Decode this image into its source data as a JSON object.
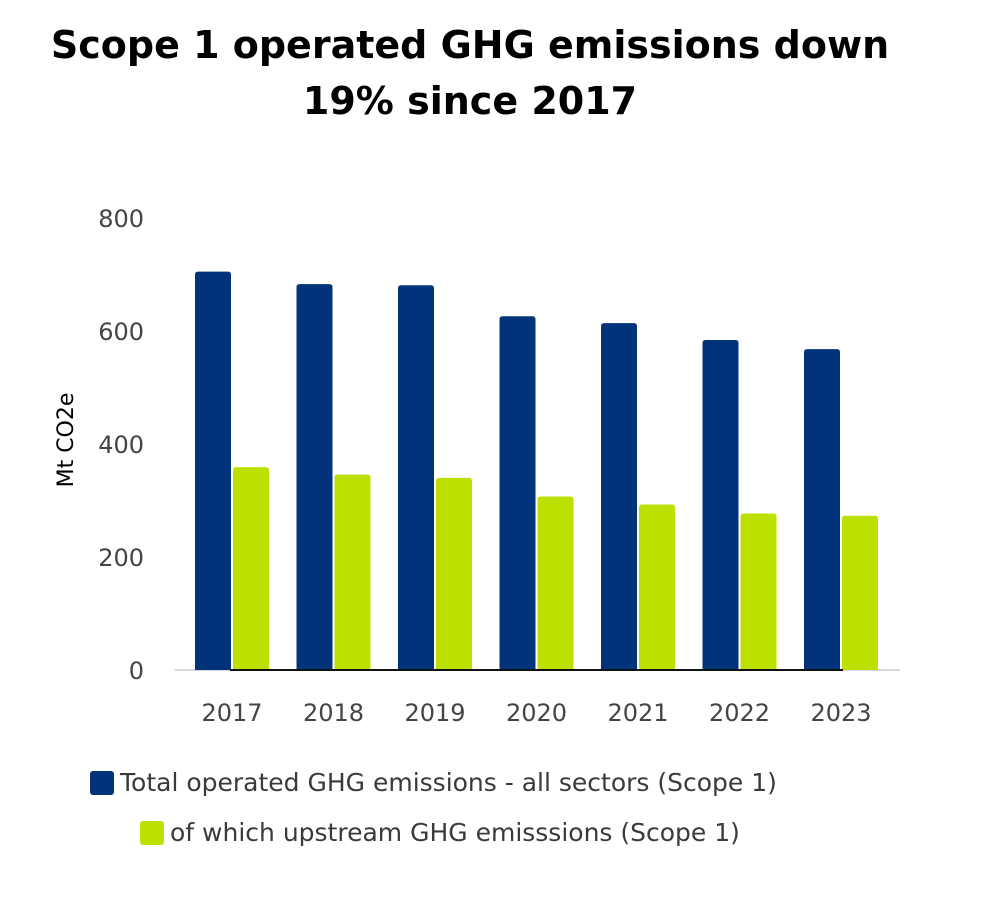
{
  "title": {
    "line1": "Scope 1 operated GHG emissions down",
    "line2": "19% since 2017"
  },
  "chart_data": {
    "type": "bar",
    "title": "Scope 1 operated GHG emissions down 19% since 2017",
    "xlabel": "",
    "ylabel": "Mt CO2e",
    "ylim": [
      0,
      800
    ],
    "yticks": [
      "0",
      "200",
      "400",
      "600",
      "800"
    ],
    "categories": [
      "2017",
      "2018",
      "2019",
      "2020",
      "2021",
      "2022",
      "2023"
    ],
    "series": [
      {
        "name": "Total operated GHG emissions - all sectors (Scope 1)",
        "color": "#00337a",
        "values": [
          705,
          683,
          681,
          626,
          614,
          584,
          568
        ]
      },
      {
        "name": "of which upstream GHG emisssions (Scope 1)",
        "color": "#bde000",
        "values": [
          359,
          346,
          340,
          307,
          293,
          277,
          273
        ]
      }
    ],
    "grid": false,
    "legend_position": "bottom"
  }
}
